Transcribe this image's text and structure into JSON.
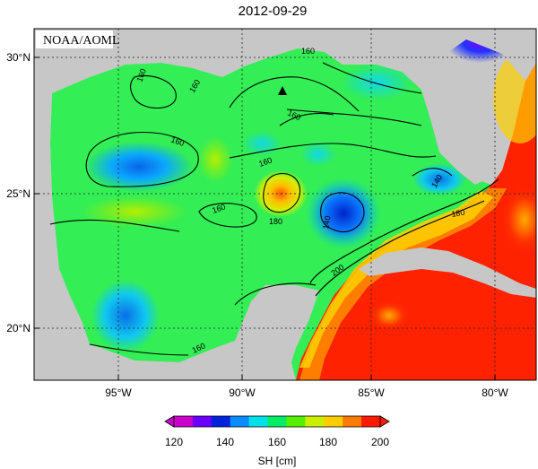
{
  "map": {
    "title": "2012-09-29",
    "source_label": "NOAA/AOML",
    "lat_ticks": [
      "30°N",
      "25°N",
      "20°N"
    ],
    "lon_ticks": [
      "95°W",
      "90°W",
      "85°W",
      "80°W"
    ],
    "contour_labels": [
      "160",
      "160",
      "160",
      "160",
      "160",
      "160",
      "160",
      "180",
      "140",
      "140",
      "180",
      "200",
      "160"
    ],
    "marker": "triangle-marker",
    "colors": {
      "land": "#c7c7c7",
      "ocean_base": "#33ee55",
      "contour": "#000000"
    }
  },
  "colorbar": {
    "label": "SH [cm]",
    "ticks": [
      "120",
      "140",
      "160",
      "180",
      "200"
    ],
    "colors": [
      "#cc00cc",
      "#6a00ff",
      "#0022dd",
      "#0a8cff",
      "#00e0e8",
      "#00ee66",
      "#55f000",
      "#ccee00",
      "#ffcc00",
      "#ff7a00",
      "#ff1a00"
    ]
  }
}
